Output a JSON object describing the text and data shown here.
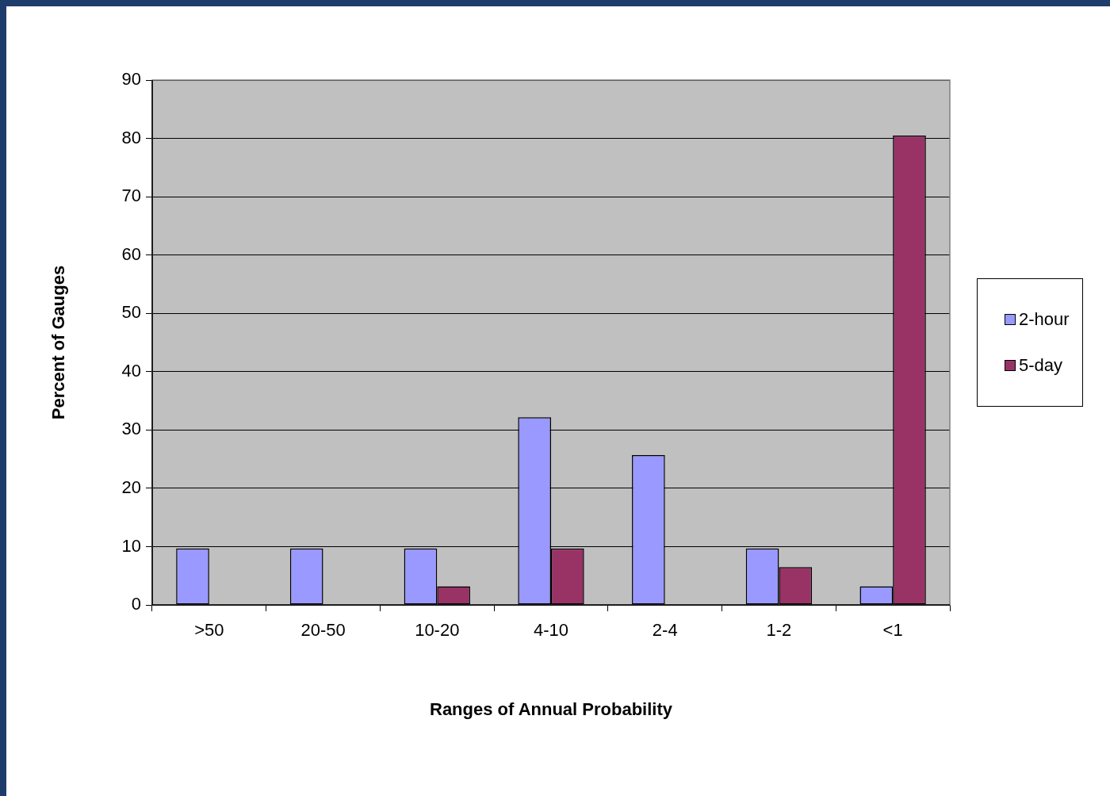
{
  "chart_data": {
    "type": "bar",
    "xlabel": "Ranges of Annual Probability",
    "ylabel": "Percent of Gauges",
    "categories": [
      ">50",
      "20-50",
      "10-20",
      "4-10",
      "2-4",
      "1-2",
      "<1"
    ],
    "series": [
      {
        "name": "2-hour",
        "color": "#9999ff",
        "values": [
          9.7,
          9.7,
          9.7,
          32.2,
          25.7,
          9.7,
          3.2
        ]
      },
      {
        "name": "5-day",
        "color": "#993366",
        "values": [
          0,
          0,
          3.2,
          9.7,
          0,
          6.5,
          80.5
        ]
      }
    ],
    "ylim": [
      0,
      90
    ],
    "yticks": [
      0,
      10,
      20,
      30,
      40,
      50,
      60,
      70,
      80,
      90
    ],
    "grid": "y",
    "legend": "right"
  }
}
